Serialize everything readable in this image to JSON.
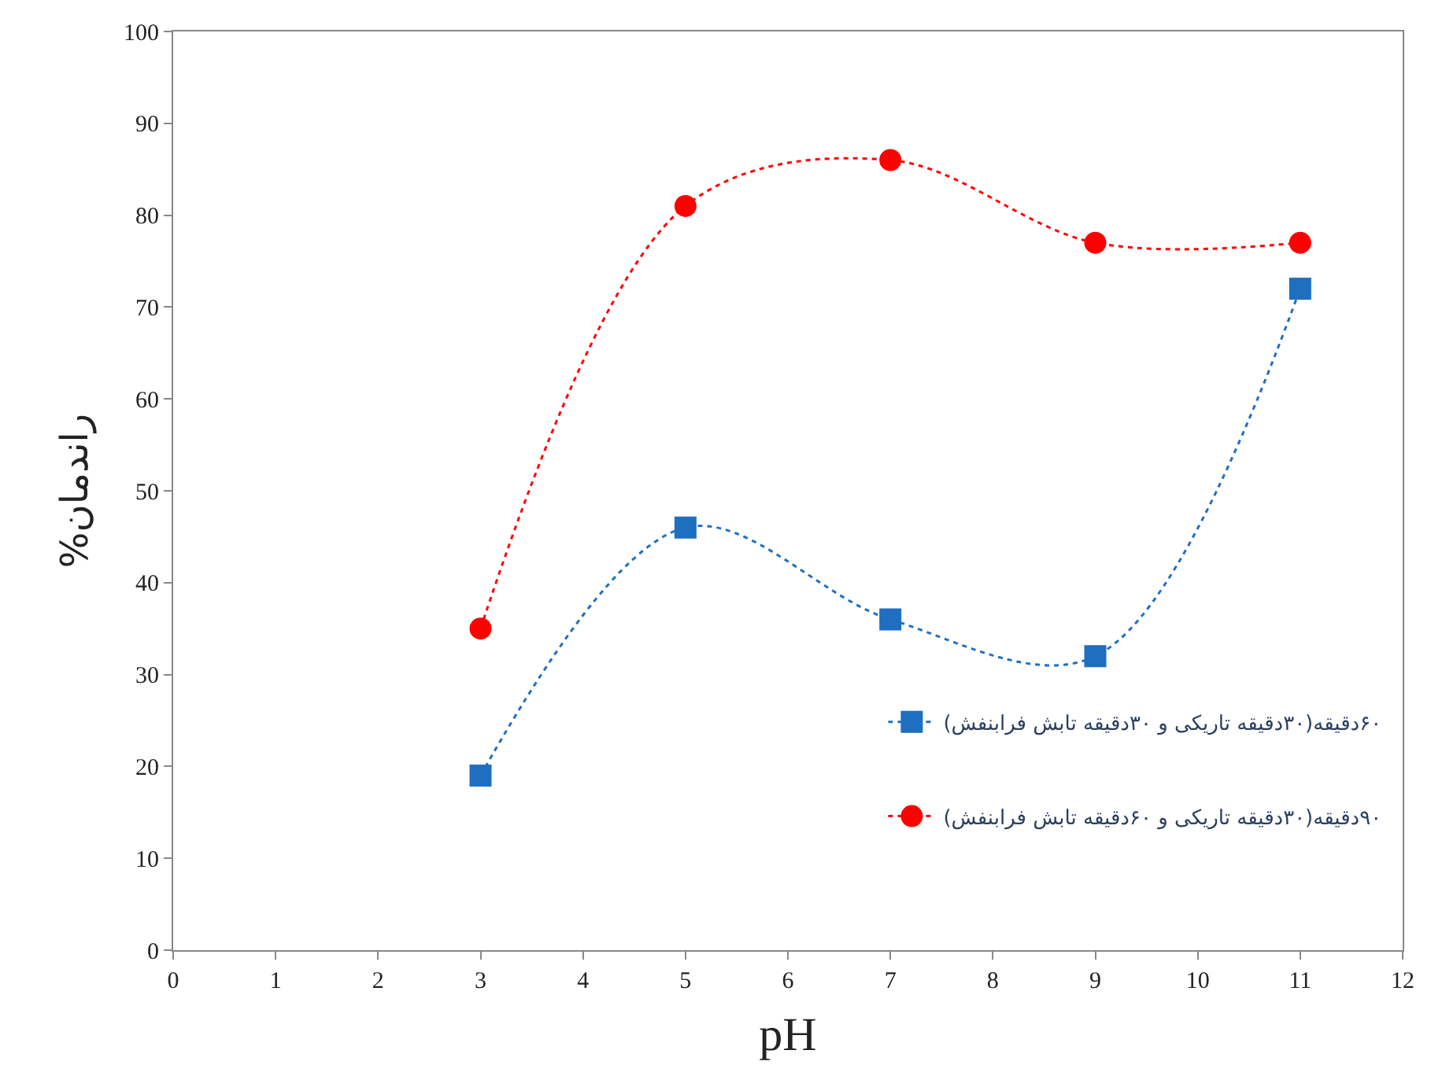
{
  "chart_data": {
    "type": "line",
    "xlabel": "pH",
    "ylabel": "راندمان%",
    "x": [
      3,
      5,
      7,
      9,
      11
    ],
    "series": [
      {
        "name": "۶۰دقیقه(۳۰دقیقه تاریکی و ۳۰دقیقه تابش فرابنفش)",
        "color": "#1f6fc0",
        "marker": "square",
        "values": [
          19,
          46,
          36,
          32,
          72
        ]
      },
      {
        "name": "۹۰دقیقه(۳۰دقیقه تاریکی و ۶۰دقیقه تابش فرابنفش)",
        "color": "#ff0000",
        "marker": "circle",
        "values": [
          35,
          81,
          86,
          77,
          77
        ]
      }
    ],
    "xlim": [
      0,
      12
    ],
    "xticks": [
      0,
      1,
      2,
      3,
      4,
      5,
      6,
      7,
      8,
      9,
      10,
      11,
      12
    ],
    "ylim": [
      0,
      100
    ],
    "yticks": [
      0,
      10,
      20,
      30,
      40,
      50,
      60,
      70,
      80,
      90,
      100
    ],
    "legend": "bottom right",
    "line_style": "dotted"
  }
}
